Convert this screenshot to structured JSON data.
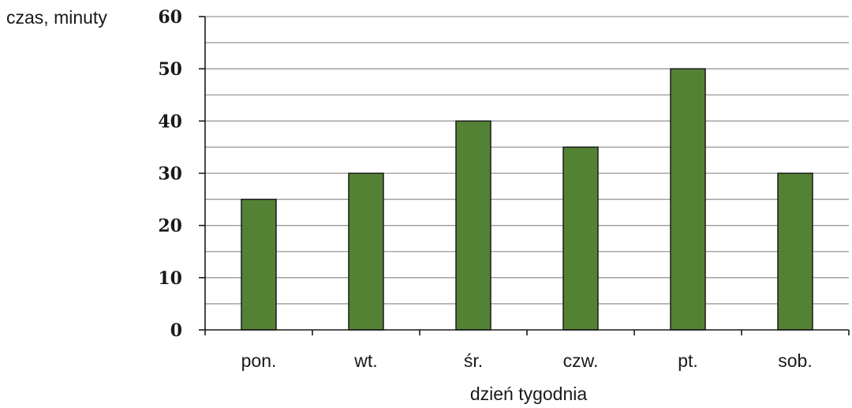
{
  "chart_data": {
    "type": "bar",
    "ylabel": "czas, minuty",
    "xlabel": "dzień tygodnia",
    "categories": [
      "pon.",
      "wt.",
      "śr.",
      "czw.",
      "pt.",
      "sob."
    ],
    "values": [
      25,
      30,
      40,
      35,
      50,
      30
    ],
    "ylim": [
      0,
      60
    ],
    "yticks": [
      0,
      10,
      20,
      30,
      40,
      50,
      60
    ],
    "minor_grid_step": 5,
    "grid": true,
    "bar_color": "#548235",
    "grid_color": "#9a9a9a"
  }
}
